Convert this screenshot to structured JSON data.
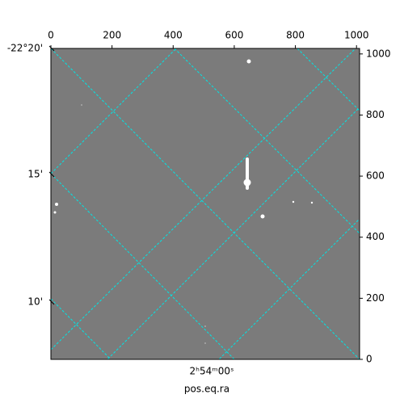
{
  "chart_data": {
    "type": "image",
    "xlabel": "pos.eq.ra",
    "xlim": [
      0,
      1010
    ],
    "ylim": [
      0,
      1018
    ],
    "xticks": [
      0,
      200,
      400,
      600,
      800,
      1000
    ],
    "yticks": [
      0,
      200,
      400,
      600,
      800,
      1000
    ],
    "dec_labels": [
      "-22°20'",
      "15'",
      "10'"
    ],
    "ra_labels": [
      "2ʰ54ᵐ00ˢ"
    ],
    "grid_color": "#00e5e5"
  }
}
